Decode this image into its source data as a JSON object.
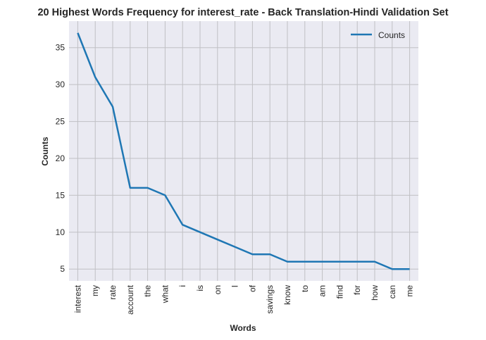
{
  "chart_data": {
    "type": "line",
    "title": "20 Highest Words Frequency for interest_rate - Back Translation-Hindi Validation Set",
    "xlabel": "Words",
    "ylabel": "Counts",
    "categories": [
      "interest",
      "my",
      "rate",
      "account",
      "the",
      "what",
      "i",
      "is",
      "on",
      "I",
      "of",
      "savings",
      "know",
      "to",
      "am",
      "find",
      "for",
      "how",
      "can",
      "me"
    ],
    "series": [
      {
        "name": "Counts",
        "values": [
          37,
          31,
          27,
          16,
          16,
          15,
          11,
          10,
          9,
          8,
          7,
          7,
          6,
          6,
          6,
          6,
          6,
          6,
          5,
          5
        ],
        "color": "#1f77b4"
      }
    ],
    "ylim": [
      3.4,
      38.6
    ],
    "yticks": [
      5,
      10,
      15,
      20,
      25,
      30,
      35
    ],
    "grid": true,
    "legend_position": "top-right",
    "background_color": "#eaeaf2",
    "grid_color": "#c0c0c4"
  }
}
